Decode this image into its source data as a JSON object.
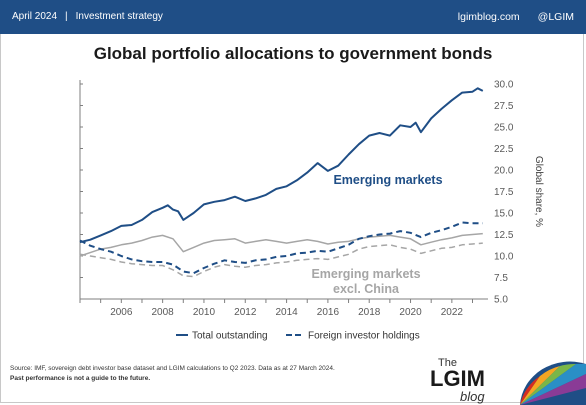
{
  "header": {
    "date": "April 2024",
    "section": "Investment strategy",
    "site": "lgimblog.com",
    "handle": "@LGIM"
  },
  "footer": {
    "source": "Source: IMF, sovereign debt investor base dataset and LGIM calculations to Q2 2023. Data as at 27 March 2024.",
    "disclaimer": "Past performance is not a guide to the future."
  },
  "logo": {
    "text_the": "The",
    "text_lgim": "LGIM",
    "text_blog": "blog"
  },
  "colors": {
    "brand_navy": "#1f4e86",
    "em_series": "#1f4e86",
    "ex_china_series": "#a6a6a6"
  },
  "chart_data": {
    "type": "line",
    "title": "Global portfolio allocations to government bonds",
    "ylabel": "Global share, %",
    "y_axis_side": "right",
    "ylim": [
      5.0,
      30.0
    ],
    "yticks": [
      "5.0",
      "7.5",
      "10.0",
      "12.5",
      "15.0",
      "17.5",
      "20.0",
      "22.5",
      "25.0",
      "27.5",
      "30.0"
    ],
    "xlim": [
      2004.0,
      2023.75
    ],
    "xticks": [
      "2006",
      "2008",
      "2010",
      "2012",
      "2014",
      "2016",
      "2018",
      "2020",
      "2022"
    ],
    "grid": false,
    "legend_position": "bottom",
    "legend": [
      {
        "label": "Total outstanding",
        "style": "solid"
      },
      {
        "label": "Foreign investor holdings",
        "style": "dashed"
      }
    ],
    "annotations": [
      {
        "text": "Emerging markets",
        "color": "#1f4e86"
      },
      {
        "text": "Emerging markets",
        "color": "#a6a6a6"
      },
      {
        "text": "excl. China",
        "color": "#a6a6a6"
      }
    ],
    "series": [
      {
        "group": "Emerging markets",
        "measure": "Total outstanding",
        "style": "solid",
        "color": "#1f4e86",
        "x": [
          2004.0,
          2004.5,
          2005.0,
          2005.5,
          2006.0,
          2006.5,
          2007.0,
          2007.5,
          2008.0,
          2008.25,
          2008.5,
          2008.75,
          2009.0,
          2009.25,
          2009.5,
          2010.0,
          2010.5,
          2011.0,
          2011.5,
          2012.0,
          2012.5,
          2013.0,
          2013.5,
          2014.0,
          2014.5,
          2015.0,
          2015.5,
          2016.0,
          2016.5,
          2017.0,
          2017.5,
          2018.0,
          2018.5,
          2019.0,
          2019.5,
          2020.0,
          2020.25,
          2020.5,
          2021.0,
          2021.5,
          2022.0,
          2022.5,
          2023.0,
          2023.25,
          2023.5
        ],
        "y": [
          11.6,
          11.9,
          12.4,
          12.9,
          13.5,
          13.6,
          14.2,
          15.1,
          15.6,
          15.9,
          15.4,
          15.2,
          14.2,
          14.6,
          15.0,
          16.0,
          16.3,
          16.5,
          16.9,
          16.4,
          16.7,
          17.1,
          17.8,
          18.1,
          18.8,
          19.7,
          20.8,
          19.9,
          20.5,
          21.8,
          23.0,
          24.0,
          24.3,
          24.0,
          25.2,
          25.0,
          25.5,
          24.4,
          26.0,
          27.1,
          28.1,
          29.0,
          29.1,
          29.5,
          29.2
        ]
      },
      {
        "group": "Emerging markets",
        "measure": "Foreign investor holdings",
        "style": "dashed",
        "color": "#1f4e86",
        "x": [
          2004.0,
          2004.5,
          2005.0,
          2005.5,
          2006.0,
          2006.5,
          2007.0,
          2007.5,
          2008.0,
          2008.5,
          2009.0,
          2009.5,
          2010.0,
          2010.5,
          2011.0,
          2011.5,
          2012.0,
          2012.5,
          2013.0,
          2013.5,
          2014.0,
          2014.5,
          2015.0,
          2015.5,
          2016.0,
          2016.5,
          2017.0,
          2017.5,
          2018.0,
          2018.5,
          2019.0,
          2019.5,
          2020.0,
          2020.5,
          2021.0,
          2021.5,
          2022.0,
          2022.5,
          2023.0,
          2023.5
        ],
        "y": [
          11.8,
          11.2,
          10.8,
          10.5,
          10.0,
          9.6,
          9.4,
          9.3,
          9.3,
          9.0,
          8.2,
          8.0,
          8.6,
          9.1,
          9.5,
          9.3,
          9.2,
          9.5,
          9.6,
          9.9,
          10.0,
          10.3,
          10.4,
          10.6,
          10.5,
          10.9,
          11.3,
          12.0,
          12.3,
          12.5,
          12.6,
          12.9,
          12.7,
          12.2,
          12.7,
          13.0,
          13.4,
          13.9,
          13.8,
          13.8
        ]
      },
      {
        "group": "Emerging markets excl. China",
        "measure": "Total outstanding",
        "style": "solid",
        "color": "#a6a6a6",
        "x": [
          2004.0,
          2004.5,
          2005.0,
          2005.5,
          2006.0,
          2006.5,
          2007.0,
          2007.5,
          2008.0,
          2008.5,
          2009.0,
          2009.5,
          2010.0,
          2010.5,
          2011.0,
          2011.5,
          2012.0,
          2012.5,
          2013.0,
          2013.5,
          2014.0,
          2014.5,
          2015.0,
          2015.5,
          2016.0,
          2016.5,
          2017.0,
          2017.5,
          2018.0,
          2018.5,
          2019.0,
          2019.5,
          2020.0,
          2020.5,
          2021.0,
          2021.5,
          2022.0,
          2022.5,
          2023.0,
          2023.5
        ],
        "y": [
          10.0,
          10.4,
          10.8,
          11.0,
          11.3,
          11.5,
          11.8,
          12.2,
          12.4,
          12.0,
          10.5,
          11.0,
          11.5,
          11.8,
          11.9,
          12.0,
          11.5,
          11.7,
          11.9,
          11.7,
          11.5,
          11.7,
          11.9,
          11.7,
          11.4,
          11.6,
          11.7,
          12.0,
          12.2,
          12.3,
          12.4,
          12.2,
          12.0,
          11.3,
          11.6,
          11.9,
          12.1,
          12.4,
          12.5,
          12.6
        ]
      },
      {
        "group": "Emerging markets excl. China",
        "measure": "Foreign investor holdings",
        "style": "dashed",
        "color": "#a6a6a6",
        "x": [
          2004.0,
          2004.5,
          2005.0,
          2005.5,
          2006.0,
          2006.5,
          2007.0,
          2007.5,
          2008.0,
          2008.5,
          2009.0,
          2009.5,
          2010.0,
          2010.5,
          2011.0,
          2011.5,
          2012.0,
          2012.5,
          2013.0,
          2013.5,
          2014.0,
          2014.5,
          2015.0,
          2015.5,
          2016.0,
          2016.5,
          2017.0,
          2017.5,
          2018.0,
          2018.5,
          2019.0,
          2019.5,
          2020.0,
          2020.5,
          2021.0,
          2021.5,
          2022.0,
          2022.5,
          2023.0,
          2023.5
        ],
        "y": [
          10.2,
          10.0,
          9.8,
          9.6,
          9.3,
          9.1,
          9.0,
          8.9,
          8.9,
          8.4,
          7.7,
          7.6,
          8.2,
          8.7,
          9.0,
          8.8,
          8.7,
          8.9,
          9.0,
          9.2,
          9.3,
          9.5,
          9.6,
          9.7,
          9.6,
          9.9,
          10.2,
          10.8,
          11.1,
          11.2,
          11.3,
          11.0,
          10.8,
          10.3,
          10.6,
          10.9,
          11.0,
          11.3,
          11.4,
          11.5
        ]
      }
    ]
  }
}
